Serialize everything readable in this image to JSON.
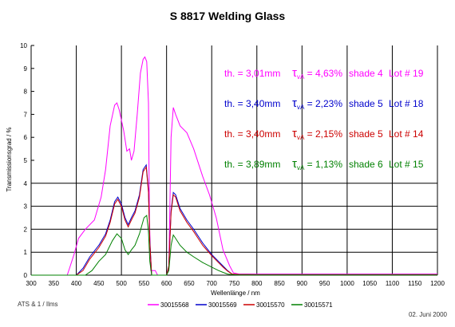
{
  "chart_data": {
    "type": "line",
    "title": "S 8817 Welding Glass",
    "xlabel": "Wellenlänge / nm",
    "ylabel": "Transmissionsgrad / %",
    "xlim": [
      300,
      1200
    ],
    "ylim": [
      0,
      10
    ],
    "x_ticks": [
      "300",
      "350",
      "400",
      "450",
      "500",
      "550",
      "600",
      "650",
      "700",
      "750",
      "800",
      "850",
      "900",
      "950",
      "1000",
      "1050",
      "1100",
      "1150",
      "1200"
    ],
    "y_ticks": [
      "0",
      "1",
      "2",
      "3",
      "4",
      "5",
      "6",
      "7",
      "8",
      "9",
      "10"
    ],
    "grid": "partial",
    "legend_position": "bottom",
    "series": [
      {
        "name": "30015568",
        "color": "#ff00ff",
        "x": [
          300,
          380,
          385,
          395,
          405,
          420,
          440,
          455,
          465,
          475,
          485,
          490,
          495,
          505,
          512,
          518,
          522,
          528,
          535,
          542,
          548,
          552,
          556,
          560,
          562,
          565,
          575,
          580,
          595,
          600,
          605,
          610,
          615,
          620,
          630,
          645,
          660,
          680,
          695,
          710,
          725,
          740,
          748,
          760,
          780,
          800,
          850,
          900,
          950,
          1000,
          1050,
          1100,
          1150,
          1200
        ],
        "y": [
          0,
          0,
          0.3,
          0.9,
          1.6,
          2.0,
          2.4,
          3.4,
          4.6,
          6.5,
          7.4,
          7.5,
          7.2,
          6.3,
          5.4,
          5.5,
          5.0,
          5.4,
          7.0,
          8.8,
          9.4,
          9.5,
          9.3,
          7.5,
          2.5,
          0.2,
          0.2,
          0,
          0,
          0,
          0.3,
          6.0,
          7.3,
          7.0,
          6.5,
          6.2,
          5.5,
          4.3,
          3.5,
          2.5,
          1.1,
          0.4,
          0.1,
          0.05,
          0.05,
          0.05,
          0.05,
          0.05,
          0.05,
          0.05,
          0.05,
          0.05,
          0.05,
          0.05
        ]
      },
      {
        "name": "30015569",
        "color": "#0000cc",
        "x": [
          300,
          400,
          415,
          430,
          450,
          465,
          475,
          485,
          492,
          500,
          508,
          515,
          522,
          530,
          540,
          548,
          555,
          560,
          563,
          567,
          575,
          580,
          600,
          605,
          610,
          615,
          620,
          630,
          645,
          660,
          680,
          700,
          715,
          725,
          735,
          745,
          760,
          800,
          850,
          900,
          950,
          1000,
          1050,
          1100,
          1150,
          1200
        ],
        "y": [
          0,
          0,
          0.3,
          0.8,
          1.3,
          1.8,
          2.4,
          3.2,
          3.4,
          3.1,
          2.5,
          2.2,
          2.5,
          2.8,
          3.5,
          4.6,
          4.8,
          3.7,
          1.5,
          0,
          0,
          0,
          0,
          0.4,
          2.8,
          3.6,
          3.5,
          2.9,
          2.4,
          2.0,
          1.4,
          0.9,
          0.6,
          0.4,
          0.2,
          0.05,
          0.03,
          0.02,
          0.02,
          0.02,
          0.02,
          0.02,
          0.02,
          0.02,
          0.02,
          0.02
        ]
      },
      {
        "name": "30015570",
        "color": "#cc0000",
        "x": [
          300,
          400,
          415,
          430,
          450,
          465,
          475,
          485,
          492,
          500,
          508,
          515,
          522,
          530,
          540,
          548,
          555,
          560,
          563,
          567,
          575,
          580,
          600,
          605,
          610,
          615,
          620,
          630,
          645,
          660,
          680,
          700,
          715,
          725,
          735,
          745,
          760,
          800,
          850,
          900,
          950,
          1000,
          1050,
          1100,
          1150,
          1200
        ],
        "y": [
          0,
          0,
          0.2,
          0.7,
          1.2,
          1.7,
          2.3,
          3.1,
          3.3,
          3.0,
          2.4,
          2.1,
          2.4,
          2.7,
          3.4,
          4.5,
          4.7,
          3.6,
          1.4,
          0,
          0,
          0,
          0,
          0.4,
          2.7,
          3.5,
          3.4,
          2.8,
          2.3,
          1.9,
          1.3,
          0.85,
          0.55,
          0.35,
          0.18,
          0.05,
          0.03,
          0.02,
          0.02,
          0.02,
          0.02,
          0.02,
          0.02,
          0.02,
          0.02,
          0.02
        ]
      },
      {
        "name": "30015571",
        "color": "#008000",
        "x": [
          300,
          420,
          435,
          450,
          465,
          480,
          490,
          500,
          508,
          515,
          522,
          530,
          540,
          550,
          556,
          560,
          563,
          567,
          575,
          600,
          605,
          610,
          615,
          620,
          630,
          645,
          660,
          680,
          700,
          715,
          725,
          735,
          745,
          760,
          800,
          850,
          900,
          950,
          1000,
          1050,
          1100,
          1150,
          1200
        ],
        "y": [
          0,
          0,
          0.2,
          0.6,
          0.9,
          1.5,
          1.8,
          1.6,
          1.1,
          0.9,
          1.1,
          1.3,
          1.8,
          2.5,
          2.6,
          1.9,
          0.6,
          0,
          0,
          0,
          0.2,
          1.3,
          1.75,
          1.6,
          1.3,
          1.0,
          0.8,
          0.55,
          0.35,
          0.2,
          0.12,
          0.05,
          0.02,
          0.01,
          0.01,
          0.01,
          0.01,
          0.01,
          0.01,
          0.01,
          0.01,
          0.01,
          0.01
        ]
      }
    ],
    "annotations": [
      {
        "th": "th. = 3,01mm",
        "tau_value": "= 4,63%",
        "shade": "shade 4",
        "lot": "Lot # 19",
        "color": "#ff00ff"
      },
      {
        "th": "th. = 3,40mm",
        "tau_value": "= 2,23%",
        "shade": "shade 5",
        "lot": "Lot # 18",
        "color": "#0000cc"
      },
      {
        "th": "th. = 3,40mm",
        "tau_value": "= 2,15%",
        "shade": "shade 5",
        "lot": "Lot # 14",
        "color": "#cc0000"
      },
      {
        "th": "th. = 3,89mm",
        "tau_value": "= 1,13%",
        "shade": "shade 6",
        "lot": "Lot # 15",
        "color": "#008000"
      }
    ],
    "tau_symbol": "τ",
    "tau_subscript": "vA"
  },
  "footer": {
    "left": "ATS & 1 / Ilms",
    "right": "02. Juni 2000"
  }
}
